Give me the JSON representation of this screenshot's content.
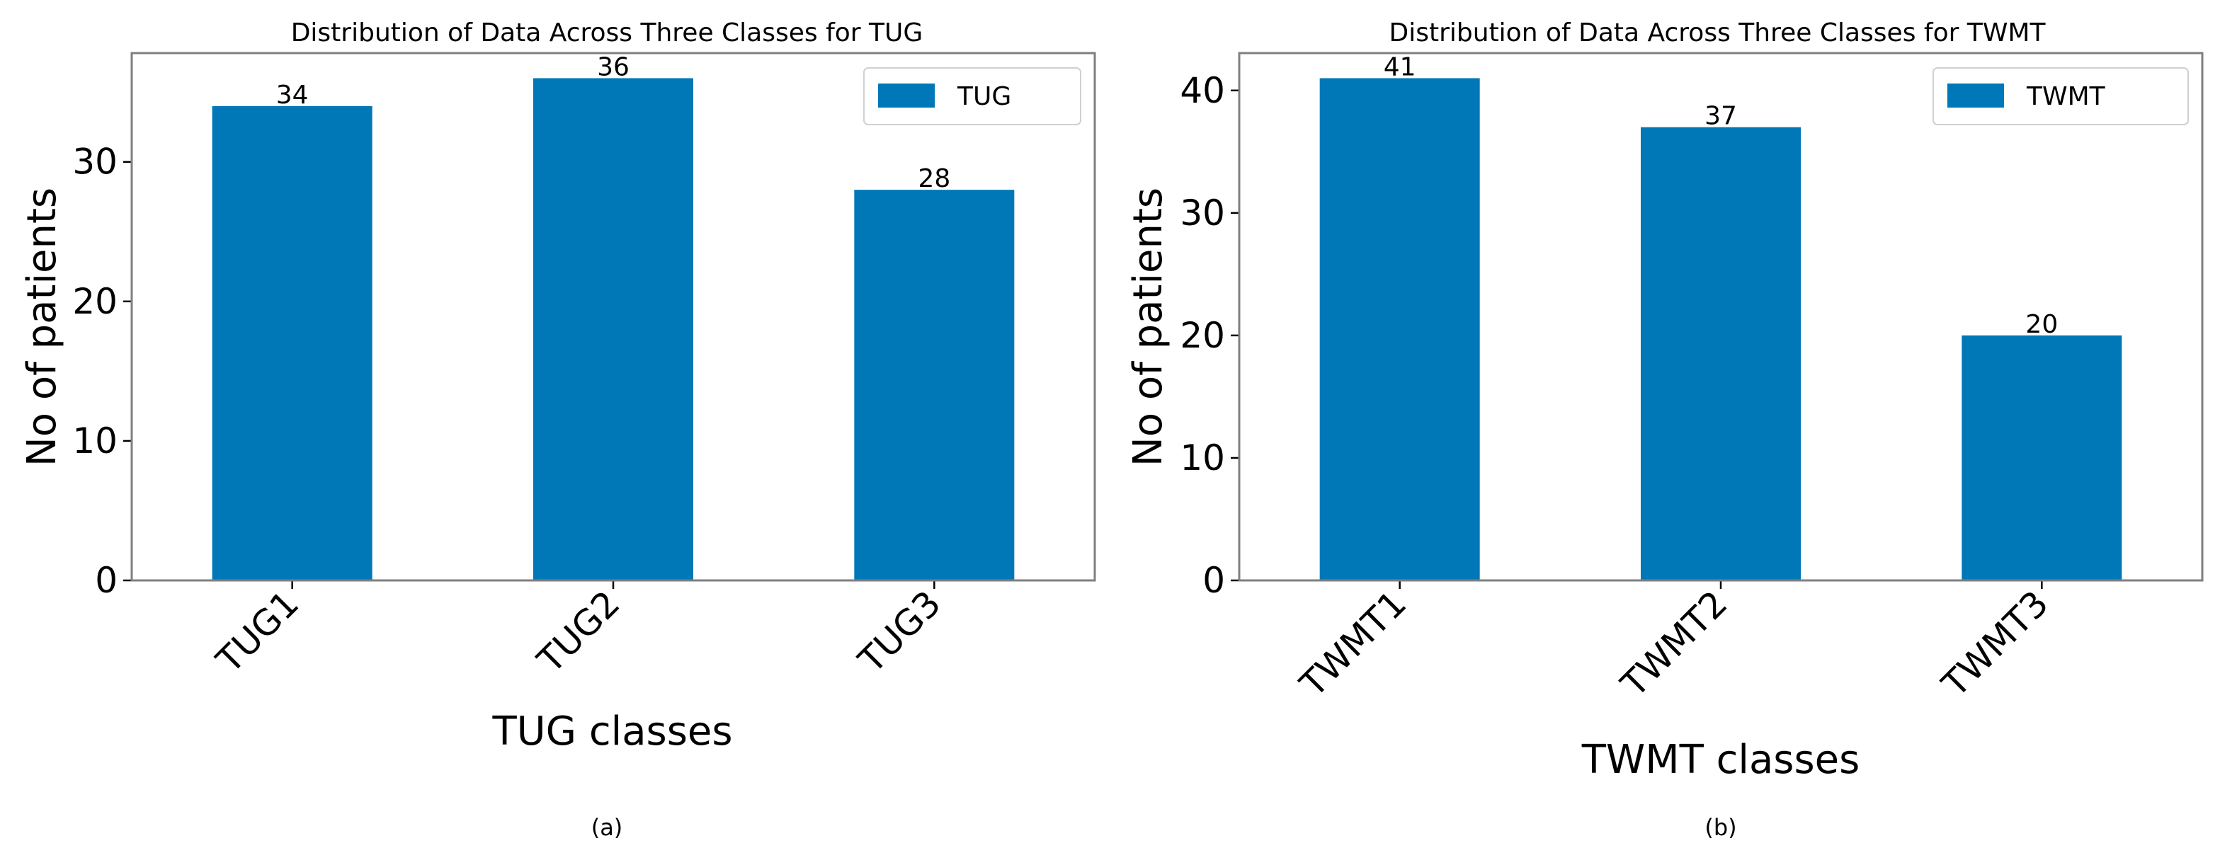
{
  "chart_data": [
    {
      "type": "bar",
      "title": "Distribution of Data Across Three Classes for TUG",
      "xlabel": "TUG classes",
      "ylabel": "No of patients",
      "categories": [
        "TUG1",
        "TUG2",
        "TUG3"
      ],
      "series": [
        {
          "name": "TUG",
          "values": [
            34,
            36,
            28
          ]
        }
      ],
      "data_labels": [
        "34",
        "36",
        "28"
      ],
      "ylim": [
        0,
        37.8
      ],
      "yticks": [
        0,
        10,
        20,
        30
      ],
      "legend": "top-right",
      "grid": false,
      "color": "#0077b6",
      "caption": "(a)"
    },
    {
      "type": "bar",
      "title": "Distribution of Data Across Three Classes for TWMT",
      "xlabel": "TWMT classes",
      "ylabel": "No of patients",
      "categories": [
        "TWMT1",
        "TWMT2",
        "TWMT3"
      ],
      "series": [
        {
          "name": "TWMT",
          "values": [
            41,
            37,
            20
          ]
        }
      ],
      "data_labels": [
        "41",
        "37",
        "20"
      ],
      "ylim": [
        0,
        43.05
      ],
      "yticks": [
        0,
        10,
        20,
        30,
        40
      ],
      "legend": "top-right",
      "grid": false,
      "color": "#0077b6",
      "caption": "(b)"
    }
  ]
}
